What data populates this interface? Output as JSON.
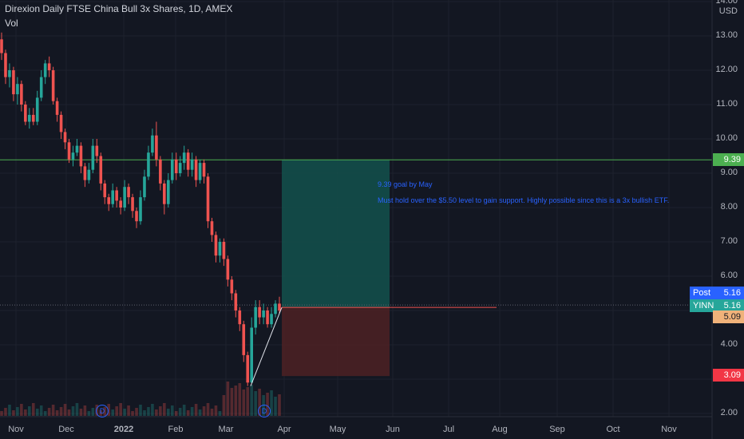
{
  "header": {
    "title": "Direxion Daily FTSE China Bull 3x Shares, 1D, AMEX",
    "indicator": "Vol"
  },
  "axis": {
    "currency": "USD",
    "price_labels": [
      "14.00",
      "13.00",
      "12.00",
      "11.00",
      "10.00",
      "9.00",
      "8.00",
      "7.00",
      "6.00",
      "5.00",
      "4.00",
      "3.00",
      "2.00"
    ],
    "time_labels": [
      "Nov",
      "Dec",
      "2022",
      "Feb",
      "Mar",
      "Apr",
      "May",
      "Jun",
      "Jul",
      "Aug",
      "Sep",
      "Oct",
      "Nov"
    ]
  },
  "tags": {
    "target": "9.39",
    "post_label": "Post",
    "post_value": "5.16",
    "symbol": "YINN",
    "symbol_value": "5.16",
    "entry": "5.09",
    "stop": "3.09"
  },
  "annotations": {
    "line1": "9.39 goal by May",
    "line2": "Must hold over the $5.50 level to gain support. Highly possible since this is a 3x bullish ETF."
  },
  "dividend_badge": "D",
  "colors": {
    "up": "#26a69a",
    "down": "#ef5350",
    "target_line": "#4caf50",
    "post": "#2962ff",
    "profit_zone": "#134e4a",
    "loss_zone": "#4a2024"
  },
  "chart_data": {
    "type": "candlestick",
    "ylim": [
      1.8,
      14.6
    ],
    "target_price": 9.39,
    "entry_price": 5.09,
    "stop_price": 3.09,
    "last_price": 5.16,
    "candles": [
      [
        12.9,
        12.5,
        13.1,
        12.3
      ],
      [
        12.5,
        11.8,
        12.6,
        11.6
      ],
      [
        11.8,
        12.0,
        12.2,
        11.5
      ],
      [
        12.0,
        11.3,
        12.1,
        11.1
      ],
      [
        11.3,
        11.6,
        11.8,
        11.0
      ],
      [
        11.6,
        11.0,
        11.7,
        10.8
      ],
      [
        11.0,
        10.5,
        11.1,
        10.4
      ],
      [
        10.5,
        10.7,
        10.9,
        10.3
      ],
      [
        10.7,
        10.5,
        10.9,
        10.4
      ],
      [
        10.5,
        11.2,
        11.4,
        10.4
      ],
      [
        11.2,
        11.8,
        12.0,
        11.1
      ],
      [
        11.8,
        12.2,
        12.3,
        11.6
      ],
      [
        12.2,
        12.0,
        12.4,
        11.8
      ],
      [
        12.0,
        11.1,
        12.1,
        11.0
      ],
      [
        11.1,
        10.7,
        11.2,
        10.5
      ],
      [
        10.7,
        10.2,
        10.8,
        10.0
      ],
      [
        10.2,
        9.9,
        10.3,
        9.7
      ],
      [
        9.9,
        9.4,
        10.0,
        9.3
      ],
      [
        9.4,
        9.6,
        9.8,
        9.2
      ],
      [
        9.6,
        9.8,
        10.0,
        9.5
      ],
      [
        9.8,
        9.2,
        9.9,
        9.0
      ],
      [
        9.2,
        8.8,
        9.3,
        8.6
      ],
      [
        8.8,
        9.1,
        9.3,
        8.7
      ],
      [
        9.1,
        9.8,
        10.0,
        9.0
      ],
      [
        9.8,
        9.5,
        10.0,
        9.3
      ],
      [
        9.5,
        8.7,
        9.6,
        8.5
      ],
      [
        8.7,
        8.3,
        8.8,
        8.1
      ],
      [
        8.3,
        8.1,
        8.4,
        7.9
      ],
      [
        8.1,
        8.5,
        8.7,
        8.0
      ],
      [
        8.5,
        8.2,
        8.6,
        8.0
      ],
      [
        8.2,
        8.0,
        8.3,
        7.8
      ],
      [
        8.0,
        8.6,
        8.8,
        7.9
      ],
      [
        8.6,
        8.3,
        8.7,
        8.1
      ],
      [
        8.3,
        7.9,
        8.4,
        7.7
      ],
      [
        7.9,
        7.6,
        8.0,
        7.4
      ],
      [
        7.6,
        8.3,
        8.5,
        7.5
      ],
      [
        8.3,
        8.9,
        9.1,
        8.2
      ],
      [
        8.9,
        9.6,
        9.8,
        8.8
      ],
      [
        9.6,
        10.1,
        10.3,
        9.5
      ],
      [
        10.1,
        9.4,
        10.5,
        9.2
      ],
      [
        9.4,
        8.7,
        9.5,
        8.5
      ],
      [
        8.7,
        8.1,
        8.8,
        7.8
      ],
      [
        8.1,
        8.8,
        9.0,
        8.0
      ],
      [
        8.8,
        9.4,
        9.6,
        8.7
      ],
      [
        9.4,
        9.0,
        9.6,
        8.8
      ],
      [
        9.0,
        9.3,
        9.5,
        8.9
      ],
      [
        9.3,
        9.6,
        9.8,
        9.1
      ],
      [
        9.6,
        9.1,
        9.7,
        8.9
      ],
      [
        9.1,
        9.4,
        9.6,
        8.9
      ],
      [
        9.4,
        8.8,
        9.5,
        8.6
      ],
      [
        8.8,
        9.3,
        9.4,
        8.7
      ],
      [
        9.3,
        8.9,
        9.4,
        8.7
      ],
      [
        8.9,
        7.6,
        9.0,
        7.4
      ],
      [
        7.6,
        7.2,
        7.7,
        7.0
      ],
      [
        7.2,
        6.6,
        7.3,
        6.4
      ],
      [
        6.6,
        7.0,
        7.1,
        6.4
      ],
      [
        7.0,
        6.5,
        7.1,
        6.3
      ],
      [
        6.5,
        5.9,
        6.6,
        5.7
      ],
      [
        5.9,
        5.5,
        6.0,
        5.3
      ],
      [
        5.5,
        5.0,
        5.6,
        4.8
      ],
      [
        5.0,
        4.6,
        5.1,
        4.4
      ],
      [
        4.6,
        3.7,
        4.7,
        3.5
      ],
      [
        3.7,
        2.9,
        3.8,
        2.8
      ],
      [
        2.9,
        4.5,
        4.8,
        2.9
      ],
      [
        4.5,
        5.1,
        5.3,
        4.3
      ],
      [
        5.1,
        4.8,
        5.3,
        4.6
      ],
      [
        4.8,
        5.0,
        5.2,
        4.6
      ],
      [
        5.0,
        4.6,
        5.1,
        4.5
      ],
      [
        4.6,
        4.9,
        5.1,
        4.5
      ],
      [
        4.9,
        5.2,
        5.3,
        4.8
      ],
      [
        5.2,
        5.0,
        5.4,
        4.9
      ]
    ]
  }
}
